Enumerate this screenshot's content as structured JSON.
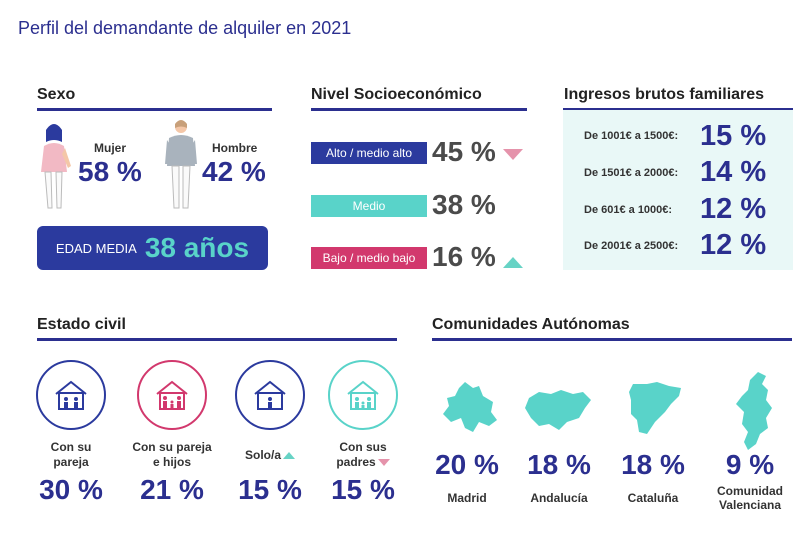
{
  "page_title": "Perfil del demandante de alquiler en 2021",
  "colors": {
    "navy": "#2b2f8f",
    "teal": "#59d3c9",
    "pink": "#d2386d",
    "light_teal": "#e9f8f7"
  },
  "sexo": {
    "title": "Sexo",
    "mujer": {
      "label": "Mujer",
      "pct": "58 %"
    },
    "hombre": {
      "label": "Hombre",
      "pct": "42 %"
    },
    "edad_media": {
      "label": "EDAD MEDIA",
      "value": "38 años"
    }
  },
  "nivel": {
    "title": "Nivel Socioeconómico",
    "rows": [
      {
        "label": "Alto / medio alto",
        "pct": "45 %",
        "trend": "down",
        "color": "#2b3a9e"
      },
      {
        "label": "Medio",
        "pct": "38 %",
        "trend": "none",
        "color": "#59d3c9"
      },
      {
        "label": "Bajo / medio bajo",
        "pct": "16 %",
        "trend": "up",
        "color": "#d2386d"
      }
    ]
  },
  "ingresos": {
    "title": "Ingresos brutos familiares",
    "rows": [
      {
        "label": "De 1001€ a 1500€:",
        "pct": "15 %"
      },
      {
        "label": "De 1501€ a 2000€:",
        "pct": "14 %"
      },
      {
        "label": "De 601€ a 1000€:",
        "pct": "12 %"
      },
      {
        "label": "De 2001€ a 2500€:",
        "pct": "12 %"
      }
    ]
  },
  "estado_civil": {
    "title": "Estado civil",
    "items": [
      {
        "label_1": "Con su",
        "label_2": "pareja",
        "pct": "30 %",
        "icon": "house-couple-icon"
      },
      {
        "label_1": "Con su pareja",
        "label_2": "e hijos",
        "pct": "21 %",
        "icon": "house-family-icon"
      },
      {
        "label_1": "Solo/a",
        "label_2": "",
        "pct": "15 %",
        "trend": "up",
        "icon": "house-single-icon"
      },
      {
        "label_1": "Con sus",
        "label_2": "padres",
        "pct": "15 %",
        "trend": "down",
        "icon": "house-parents-icon"
      }
    ]
  },
  "comunidades": {
    "title": "Comunidades Autónomas",
    "items": [
      {
        "label_1": "Madrid",
        "label_2": "",
        "pct": "20 %",
        "icon": "madrid-map-icon"
      },
      {
        "label_1": "Andalucía",
        "label_2": "",
        "pct": "18 %",
        "icon": "andalucia-map-icon"
      },
      {
        "label_1": "Cataluña",
        "label_2": "",
        "pct": "18 %",
        "icon": "cataluna-map-icon"
      },
      {
        "label_1": "Comunidad",
        "label_2": "Valenciana",
        "pct": "9 %",
        "icon": "valencia-map-icon"
      }
    ]
  }
}
